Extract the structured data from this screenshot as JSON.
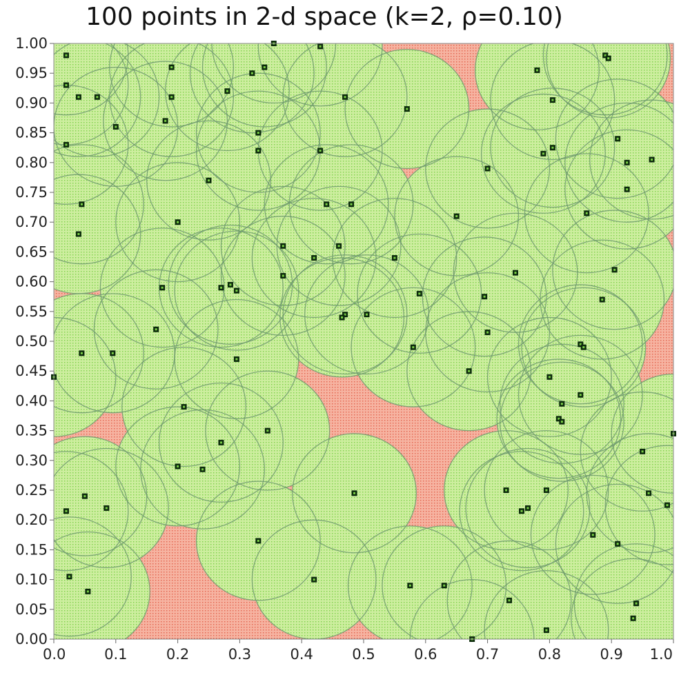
{
  "chart_data": {
    "type": "scatter",
    "title": "100 points in 2-d space (k=2, ρ=0.10)",
    "xlabel": "",
    "ylabel": "",
    "xlim": [
      0,
      1
    ],
    "ylim": [
      0,
      1
    ],
    "x_ticks": [
      "0.0",
      "0.1",
      "0.2",
      "0.3",
      "0.4",
      "0.5",
      "0.6",
      "0.7",
      "0.8",
      "0.9",
      "1.0"
    ],
    "y_ticks": [
      "0.00",
      "0.05",
      "0.10",
      "0.15",
      "0.20",
      "0.25",
      "0.30",
      "0.35",
      "0.40",
      "0.45",
      "0.50",
      "0.55",
      "0.60",
      "0.65",
      "0.70",
      "0.75",
      "0.80",
      "0.85",
      "0.90",
      "0.95",
      "1.00"
    ],
    "grid": false,
    "background_color": "#f4a48f",
    "coverage_fill_color": "#c8ee9a",
    "circle_stroke_color": "#6f9a6f",
    "point_color": "#0b2a0b",
    "circle_radius": 0.1,
    "points": [
      {
        "x": 0.02,
        "y": 0.98
      },
      {
        "x": 0.02,
        "y": 0.93
      },
      {
        "x": 0.04,
        "y": 0.91
      },
      {
        "x": 0.07,
        "y": 0.91
      },
      {
        "x": 0.1,
        "y": 0.86
      },
      {
        "x": 0.02,
        "y": 0.83
      },
      {
        "x": 0.045,
        "y": 0.73
      },
      {
        "x": 0.04,
        "y": 0.68
      },
      {
        "x": 0.19,
        "y": 0.96
      },
      {
        "x": 0.19,
        "y": 0.91
      },
      {
        "x": 0.18,
        "y": 0.87
      },
      {
        "x": 0.25,
        "y": 0.77
      },
      {
        "x": 0.28,
        "y": 0.92
      },
      {
        "x": 0.32,
        "y": 0.95
      },
      {
        "x": 0.34,
        "y": 0.96
      },
      {
        "x": 0.355,
        "y": 1.0
      },
      {
        "x": 0.43,
        "y": 0.995
      },
      {
        "x": 0.33,
        "y": 0.85
      },
      {
        "x": 0.33,
        "y": 0.82
      },
      {
        "x": 0.43,
        "y": 0.82
      },
      {
        "x": 0.47,
        "y": 0.91
      },
      {
        "x": 0.57,
        "y": 0.89
      },
      {
        "x": 0.44,
        "y": 0.73
      },
      {
        "x": 0.48,
        "y": 0.73
      },
      {
        "x": 0.37,
        "y": 0.66
      },
      {
        "x": 0.42,
        "y": 0.64
      },
      {
        "x": 0.37,
        "y": 0.61
      },
      {
        "x": 0.46,
        "y": 0.66
      },
      {
        "x": 0.55,
        "y": 0.64
      },
      {
        "x": 0.175,
        "y": 0.59
      },
      {
        "x": 0.27,
        "y": 0.59
      },
      {
        "x": 0.285,
        "y": 0.595
      },
      {
        "x": 0.295,
        "y": 0.585
      },
      {
        "x": 0.165,
        "y": 0.52
      },
      {
        "x": 0.47,
        "y": 0.545
      },
      {
        "x": 0.465,
        "y": 0.54
      },
      {
        "x": 0.505,
        "y": 0.545
      },
      {
        "x": 0.59,
        "y": 0.58
      },
      {
        "x": 0.58,
        "y": 0.49
      },
      {
        "x": 0.65,
        "y": 0.71
      },
      {
        "x": 0.7,
        "y": 0.79
      },
      {
        "x": 0.745,
        "y": 0.615
      },
      {
        "x": 0.695,
        "y": 0.575
      },
      {
        "x": 0.7,
        "y": 0.515
      },
      {
        "x": 0.67,
        "y": 0.45
      },
      {
        "x": 0.78,
        "y": 0.955
      },
      {
        "x": 0.805,
        "y": 0.905
      },
      {
        "x": 0.79,
        "y": 0.815
      },
      {
        "x": 0.805,
        "y": 0.825
      },
      {
        "x": 0.89,
        "y": 0.98
      },
      {
        "x": 0.895,
        "y": 0.975
      },
      {
        "x": 0.91,
        "y": 0.84
      },
      {
        "x": 0.925,
        "y": 0.8
      },
      {
        "x": 0.965,
        "y": 0.805
      },
      {
        "x": 0.925,
        "y": 0.755
      },
      {
        "x": 0.86,
        "y": 0.715
      },
      {
        "x": 0.905,
        "y": 0.62
      },
      {
        "x": 0.885,
        "y": 0.57
      },
      {
        "x": 0.85,
        "y": 0.495
      },
      {
        "x": 0.855,
        "y": 0.49
      },
      {
        "x": 0.0,
        "y": 0.44
      },
      {
        "x": 0.045,
        "y": 0.48
      },
      {
        "x": 0.095,
        "y": 0.48
      },
      {
        "x": 0.295,
        "y": 0.47
      },
      {
        "x": 0.21,
        "y": 0.39
      },
      {
        "x": 0.345,
        "y": 0.35
      },
      {
        "x": 0.27,
        "y": 0.33
      },
      {
        "x": 0.2,
        "y": 0.29
      },
      {
        "x": 0.24,
        "y": 0.285
      },
      {
        "x": 0.8,
        "y": 0.44
      },
      {
        "x": 0.85,
        "y": 0.41
      },
      {
        "x": 0.82,
        "y": 0.395
      },
      {
        "x": 0.815,
        "y": 0.37
      },
      {
        "x": 0.82,
        "y": 0.365
      },
      {
        "x": 1.0,
        "y": 0.345
      },
      {
        "x": 0.95,
        "y": 0.315
      },
      {
        "x": 0.05,
        "y": 0.24
      },
      {
        "x": 0.02,
        "y": 0.215
      },
      {
        "x": 0.085,
        "y": 0.22
      },
      {
        "x": 0.485,
        "y": 0.245
      },
      {
        "x": 0.73,
        "y": 0.25
      },
      {
        "x": 0.795,
        "y": 0.25
      },
      {
        "x": 0.755,
        "y": 0.215
      },
      {
        "x": 0.765,
        "y": 0.22
      },
      {
        "x": 0.96,
        "y": 0.245
      },
      {
        "x": 0.99,
        "y": 0.225
      },
      {
        "x": 0.33,
        "y": 0.165
      },
      {
        "x": 0.87,
        "y": 0.175
      },
      {
        "x": 0.91,
        "y": 0.16
      },
      {
        "x": 0.025,
        "y": 0.105
      },
      {
        "x": 0.055,
        "y": 0.08
      },
      {
        "x": 0.42,
        "y": 0.1
      },
      {
        "x": 0.575,
        "y": 0.09
      },
      {
        "x": 0.63,
        "y": 0.09
      },
      {
        "x": 0.735,
        "y": 0.065
      },
      {
        "x": 0.94,
        "y": 0.06
      },
      {
        "x": 0.935,
        "y": 0.035
      },
      {
        "x": 0.795,
        "y": 0.015
      },
      {
        "x": 0.675,
        "y": 0.0
      },
      {
        "x": 0.2,
        "y": 0.7
      }
    ]
  }
}
